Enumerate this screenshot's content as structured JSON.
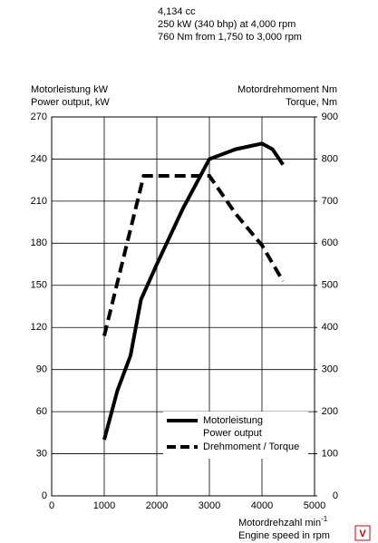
{
  "chart_data": {
    "type": "line",
    "header": [
      "4,134 cc",
      "250 kW (340 bhp) at 4,000 rpm",
      "760 Nm from 1,750 to 3,000 rpm"
    ],
    "y_label": [
      "Motorleistung kW",
      "Power output, kW"
    ],
    "y2_label": [
      "Motordrehmoment Nm",
      "Torque, Nm"
    ],
    "x_label": "Motordrehzahl min",
    "x_label_sup": "-1",
    "x_label2": "Engine speed in rpm",
    "logo": "V",
    "xlim": [
      0,
      5000
    ],
    "xticks": [
      0,
      1000,
      2000,
      3000,
      4000,
      5000
    ],
    "ylim": [
      0,
      270
    ],
    "yticks": [
      0,
      30,
      60,
      90,
      120,
      150,
      180,
      210,
      240,
      270
    ],
    "y2lim": [
      0,
      900
    ],
    "y2ticks": [
      0,
      100,
      200,
      300,
      400,
      500,
      600,
      700,
      800,
      900
    ],
    "grid": true,
    "series": [
      {
        "name": "Motorleistung",
        "subname": "Power output",
        "color": "#000000",
        "dashed": false,
        "x": [
          1000,
          1250,
          1500,
          1700,
          2000,
          2500,
          3000,
          3500,
          4000,
          4200,
          4400
        ],
        "values": [
          40,
          75,
          100,
          140,
          165,
          205,
          240,
          247,
          251,
          247,
          236
        ]
      },
      {
        "name": "Drehmoment / Torque",
        "color": "#000000",
        "dashed": true,
        "axis": "y2",
        "x": [
          1000,
          1750,
          3000,
          3500,
          4000,
          4400
        ],
        "values": [
          380,
          760,
          760,
          670,
          595,
          510
        ]
      }
    ]
  }
}
